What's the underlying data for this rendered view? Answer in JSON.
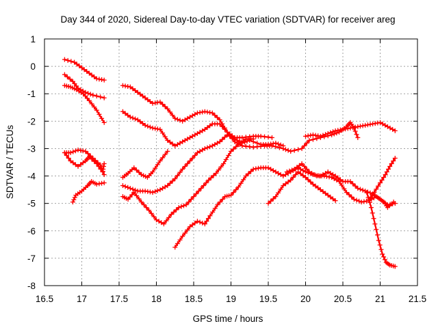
{
  "chart_data": {
    "type": "scatter",
    "title": "Day 344 of 2020, Sidereal Day-to-day VTEC variation (SDTVAR) for receiver areg",
    "xlabel": "GPS time / hours",
    "ylabel": "SDTVAR / TECUs",
    "xlim": [
      16.5,
      21.5
    ],
    "ylim": [
      -8,
      1
    ],
    "xticks": [
      16.5,
      17,
      17.5,
      18,
      18.5,
      19,
      19.5,
      20,
      20.5,
      21,
      21.5
    ],
    "xtick_labels": [
      "16.5",
      "17",
      "17.5",
      "18",
      "18.5",
      "19",
      "19.5",
      "20",
      "20.5",
      "21",
      "21.5"
    ],
    "yticks": [
      -8,
      -7,
      -6,
      -5,
      -4,
      -3,
      -2,
      -1,
      0,
      1
    ],
    "ytick_labels": [
      "-8",
      "-7",
      "-6",
      "-5",
      "-4",
      "-3",
      "-2",
      "-1",
      "0",
      "1"
    ],
    "grid": true,
    "marker": "plus",
    "color": "#ff0000",
    "series": [
      {
        "name": "s1",
        "points": [
          [
            16.77,
            0.25
          ],
          [
            16.9,
            0.15
          ],
          [
            17.0,
            -0.05
          ],
          [
            17.1,
            -0.25
          ],
          [
            17.2,
            -0.45
          ],
          [
            17.3,
            -0.5
          ]
        ]
      },
      {
        "name": "s2",
        "points": [
          [
            16.77,
            -0.3
          ],
          [
            16.88,
            -0.55
          ],
          [
            16.95,
            -0.8
          ],
          [
            17.05,
            -0.95
          ],
          [
            17.15,
            -1.05
          ],
          [
            17.3,
            -1.15
          ]
        ]
      },
      {
        "name": "s3",
        "points": [
          [
            16.77,
            -0.7
          ],
          [
            16.85,
            -0.75
          ],
          [
            16.93,
            -0.85
          ],
          [
            17.02,
            -1.0
          ],
          [
            17.1,
            -1.25
          ],
          [
            17.2,
            -1.6
          ],
          [
            17.3,
            -2.05
          ]
        ]
      },
      {
        "name": "s4",
        "points": [
          [
            16.77,
            -3.15
          ],
          [
            16.85,
            -3.15
          ],
          [
            16.95,
            -3.05
          ],
          [
            17.05,
            -3.1
          ],
          [
            17.15,
            -3.35
          ],
          [
            17.25,
            -3.6
          ],
          [
            17.3,
            -3.95
          ]
        ]
      },
      {
        "name": "s5",
        "points": [
          [
            16.77,
            -3.15
          ],
          [
            16.85,
            -3.45
          ],
          [
            16.95,
            -3.65
          ],
          [
            17.05,
            -3.45
          ],
          [
            17.1,
            -3.3
          ],
          [
            17.2,
            -3.55
          ],
          [
            17.28,
            -3.85
          ],
          [
            17.3,
            -3.55
          ]
        ]
      },
      {
        "name": "s6",
        "points": [
          [
            16.88,
            -4.95
          ],
          [
            16.92,
            -4.7
          ],
          [
            17.0,
            -4.55
          ],
          [
            17.08,
            -4.35
          ],
          [
            17.13,
            -4.2
          ],
          [
            17.2,
            -4.3
          ],
          [
            17.3,
            -4.25
          ]
        ]
      },
      {
        "name": "s7",
        "points": [
          [
            17.55,
            -0.7
          ],
          [
            17.65,
            -0.75
          ],
          [
            17.75,
            -0.95
          ],
          [
            17.85,
            -1.15
          ],
          [
            17.95,
            -1.35
          ],
          [
            18.05,
            -1.3
          ],
          [
            18.15,
            -1.55
          ],
          [
            18.25,
            -1.9
          ],
          [
            18.35,
            -2.0
          ],
          [
            18.45,
            -1.85
          ],
          [
            18.55,
            -1.7
          ],
          [
            18.65,
            -1.65
          ],
          [
            18.75,
            -1.7
          ],
          [
            18.85,
            -1.95
          ],
          [
            18.95,
            -2.4
          ],
          [
            19.05,
            -2.75
          ],
          [
            19.15,
            -2.9
          ],
          [
            19.3,
            -2.95
          ],
          [
            19.45,
            -2.9
          ],
          [
            19.55,
            -2.9
          ],
          [
            19.7,
            -3.0
          ],
          [
            19.8,
            -3.1
          ],
          [
            19.95,
            -3.0
          ],
          [
            20.05,
            -2.7
          ],
          [
            20.2,
            -2.6
          ],
          [
            20.35,
            -2.5
          ],
          [
            20.45,
            -2.4
          ],
          [
            20.55,
            -2.2
          ],
          [
            20.6,
            -2.05
          ],
          [
            20.65,
            -2.25
          ],
          [
            20.7,
            -2.6
          ]
        ]
      },
      {
        "name": "s8",
        "points": [
          [
            17.55,
            -1.65
          ],
          [
            17.65,
            -1.85
          ],
          [
            17.75,
            -1.95
          ],
          [
            17.85,
            -2.15
          ],
          [
            17.95,
            -2.25
          ],
          [
            18.05,
            -2.3
          ],
          [
            18.15,
            -2.7
          ],
          [
            18.25,
            -2.9
          ],
          [
            18.35,
            -2.75
          ],
          [
            18.45,
            -2.6
          ],
          [
            18.55,
            -2.45
          ],
          [
            18.65,
            -2.3
          ],
          [
            18.75,
            -2.1
          ],
          [
            18.85,
            -2.1
          ],
          [
            18.95,
            -2.4
          ],
          [
            19.05,
            -2.6
          ],
          [
            19.15,
            -2.6
          ],
          [
            19.3,
            -2.55
          ],
          [
            19.4,
            -2.55
          ],
          [
            19.55,
            -2.6
          ]
        ]
      },
      {
        "name": "s9",
        "points": [
          [
            17.55,
            -4.05
          ],
          [
            17.62,
            -3.9
          ],
          [
            17.7,
            -3.7
          ],
          [
            17.8,
            -3.95
          ],
          [
            17.88,
            -4.05
          ],
          [
            17.95,
            -3.85
          ],
          [
            18.05,
            -3.45
          ],
          [
            18.15,
            -3.1
          ]
        ]
      },
      {
        "name": "s10",
        "points": [
          [
            17.55,
            -4.35
          ],
          [
            17.65,
            -4.45
          ],
          [
            17.75,
            -4.55
          ],
          [
            17.85,
            -4.55
          ],
          [
            17.95,
            -4.6
          ],
          [
            18.05,
            -4.5
          ],
          [
            18.15,
            -4.35
          ],
          [
            18.25,
            -4.1
          ],
          [
            18.35,
            -3.75
          ],
          [
            18.45,
            -3.45
          ],
          [
            18.55,
            -3.15
          ],
          [
            18.65,
            -3.0
          ],
          [
            18.75,
            -2.9
          ],
          [
            18.85,
            -2.75
          ],
          [
            18.95,
            -2.5
          ],
          [
            19.05,
            -2.65
          ],
          [
            19.15,
            -2.8
          ],
          [
            19.25,
            -2.7
          ],
          [
            19.4,
            -2.85
          ],
          [
            19.5,
            -2.85
          ],
          [
            19.6,
            -2.8
          ],
          [
            19.7,
            -2.9
          ]
        ]
      },
      {
        "name": "s11",
        "points": [
          [
            17.55,
            -4.75
          ],
          [
            17.62,
            -4.85
          ],
          [
            17.7,
            -4.6
          ],
          [
            17.8,
            -4.95
          ],
          [
            17.9,
            -5.25
          ],
          [
            18.0,
            -5.6
          ],
          [
            18.1,
            -5.75
          ],
          [
            18.2,
            -5.4
          ],
          [
            18.3,
            -5.15
          ],
          [
            18.4,
            -5.05
          ],
          [
            18.5,
            -4.75
          ],
          [
            18.6,
            -4.45
          ],
          [
            18.7,
            -4.15
          ],
          [
            18.8,
            -3.9
          ],
          [
            18.9,
            -3.55
          ],
          [
            19.0,
            -3.1
          ],
          [
            19.1,
            -2.85
          ],
          [
            19.2,
            -2.65
          ],
          [
            19.3,
            -2.65
          ]
        ]
      },
      {
        "name": "s12",
        "points": [
          [
            18.25,
            -6.6
          ],
          [
            18.35,
            -6.2
          ],
          [
            18.45,
            -5.85
          ],
          [
            18.55,
            -5.65
          ],
          [
            18.65,
            -5.75
          ],
          [
            18.72,
            -5.45
          ],
          [
            18.82,
            -5.05
          ],
          [
            18.92,
            -4.75
          ],
          [
            19.0,
            -4.7
          ],
          [
            19.1,
            -4.4
          ],
          [
            19.2,
            -4.0
          ],
          [
            19.3,
            -3.75
          ],
          [
            19.4,
            -3.7
          ],
          [
            19.5,
            -3.7
          ],
          [
            19.6,
            -3.85
          ],
          [
            19.7,
            -4.0
          ],
          [
            19.8,
            -3.85
          ],
          [
            19.9,
            -3.7
          ],
          [
            20.0,
            -3.85
          ],
          [
            20.1,
            -3.95
          ],
          [
            20.2,
            -4.0
          ],
          [
            20.3,
            -3.85
          ],
          [
            20.4,
            -4.0
          ],
          [
            20.5,
            -4.2
          ],
          [
            20.6,
            -4.2
          ],
          [
            20.7,
            -4.45
          ],
          [
            20.8,
            -4.55
          ],
          [
            20.9,
            -4.65
          ],
          [
            21.0,
            -4.85
          ],
          [
            21.1,
            -5.05
          ],
          [
            21.2,
            -5.0
          ]
        ]
      },
      {
        "name": "s13",
        "points": [
          [
            19.5,
            -5.0
          ],
          [
            19.6,
            -4.75
          ],
          [
            19.7,
            -4.35
          ],
          [
            19.8,
            -4.15
          ],
          [
            19.9,
            -3.85
          ],
          [
            20.0,
            -4.05
          ],
          [
            20.1,
            -4.3
          ],
          [
            20.2,
            -4.5
          ],
          [
            20.3,
            -4.7
          ],
          [
            20.4,
            -4.9
          ]
        ]
      },
      {
        "name": "s14",
        "points": [
          [
            19.75,
            -3.85
          ],
          [
            19.85,
            -3.75
          ],
          [
            19.95,
            -3.55
          ],
          [
            20.05,
            -3.85
          ],
          [
            20.15,
            -4.0
          ],
          [
            20.25,
            -4.0
          ],
          [
            20.35,
            -4.05
          ],
          [
            20.45,
            -4.2
          ],
          [
            20.55,
            -4.6
          ],
          [
            20.65,
            -4.85
          ],
          [
            20.75,
            -4.95
          ],
          [
            20.85,
            -4.9
          ],
          [
            20.95,
            -4.75
          ],
          [
            21.05,
            -4.95
          ],
          [
            21.1,
            -5.15
          ],
          [
            21.18,
            -4.95
          ]
        ]
      },
      {
        "name": "s15",
        "points": [
          [
            20.0,
            -2.55
          ],
          [
            20.1,
            -2.5
          ],
          [
            20.2,
            -2.55
          ],
          [
            20.3,
            -2.45
          ],
          [
            20.4,
            -2.35
          ],
          [
            20.5,
            -2.3
          ],
          [
            20.6,
            -2.25
          ],
          [
            20.7,
            -2.2
          ],
          [
            20.8,
            -2.15
          ],
          [
            20.9,
            -2.1
          ],
          [
            21.0,
            -2.05
          ],
          [
            21.1,
            -2.2
          ],
          [
            21.2,
            -2.35
          ]
        ]
      },
      {
        "name": "s16",
        "points": [
          [
            20.85,
            -4.85
          ],
          [
            20.92,
            -4.6
          ],
          [
            21.0,
            -4.25
          ],
          [
            21.07,
            -3.95
          ],
          [
            21.13,
            -3.65
          ],
          [
            21.2,
            -3.35
          ]
        ]
      },
      {
        "name": "s17",
        "points": [
          [
            20.82,
            -4.6
          ],
          [
            20.88,
            -5.15
          ],
          [
            20.93,
            -5.75
          ],
          [
            20.98,
            -6.35
          ],
          [
            21.03,
            -6.85
          ],
          [
            21.08,
            -7.15
          ],
          [
            21.13,
            -7.25
          ],
          [
            21.2,
            -7.3
          ]
        ]
      }
    ]
  }
}
